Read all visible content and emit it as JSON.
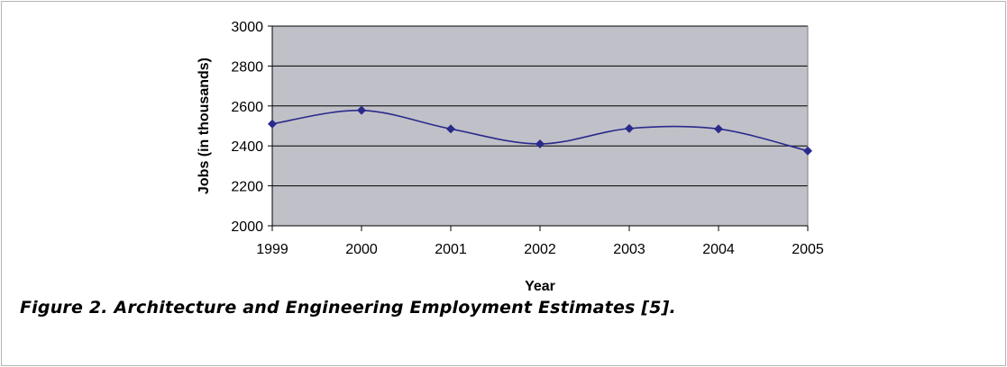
{
  "figure": {
    "caption": "Figure 2.  Architecture and Engineering Employment Estimates [5]."
  },
  "chart_data": {
    "type": "line",
    "title": "",
    "xlabel": "Year",
    "ylabel": "Jobs (in thousands)",
    "x": [
      "1999",
      "2000",
      "2001",
      "2002",
      "2003",
      "2004",
      "2005"
    ],
    "series": [
      {
        "values": [
          2510,
          2578,
          2485,
          2410,
          2487,
          2485,
          2375
        ]
      }
    ],
    "ylim": [
      2000,
      3000
    ],
    "yticks": [
      "2000",
      "2200",
      "2400",
      "2600",
      "2800",
      "3000"
    ],
    "smoothed": true,
    "grid": "horizontal",
    "legend": "none",
    "colors": {
      "plot_background": "#c0c0c8",
      "line": "#2a2a8c",
      "marker": "#2a2a8c",
      "gridline": "#000000"
    }
  }
}
